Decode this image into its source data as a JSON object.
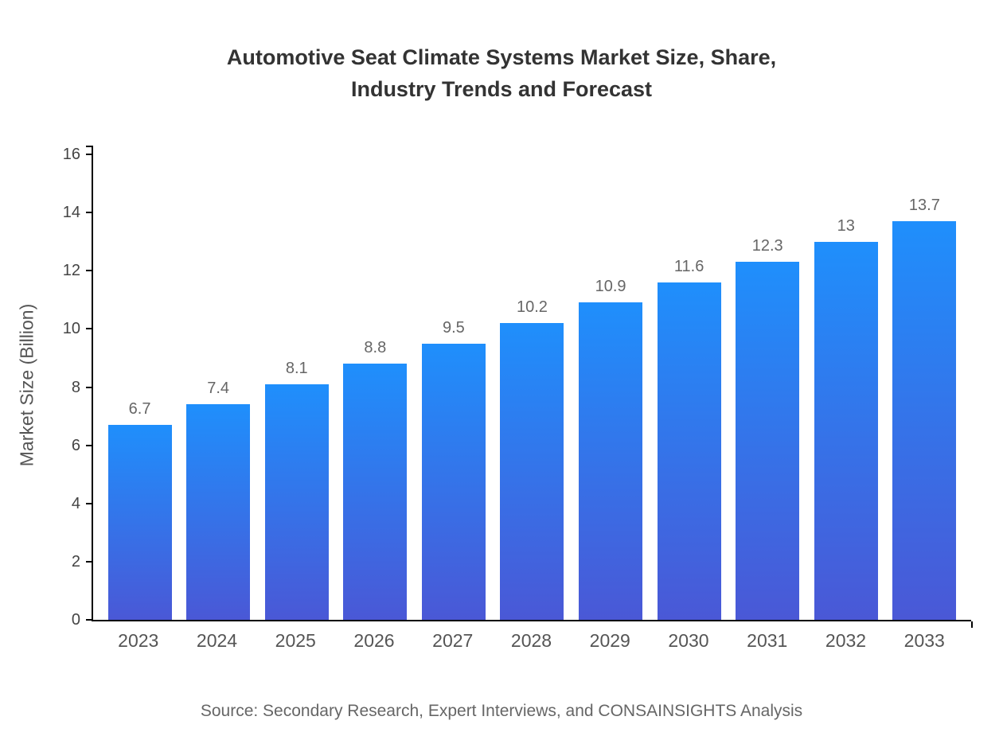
{
  "title_lines": [
    "Automotive Seat Climate Systems Market Size, Share,",
    "Industry Trends and Forecast"
  ],
  "source_note": "Source: Secondary Research, Expert Interviews, and CONSAINSIGHTS Analysis",
  "chart_data": {
    "type": "bar",
    "title": "Automotive Seat Climate Systems Market Size, Share, Industry Trends and Forecast",
    "categories": [
      "2023",
      "2024",
      "2025",
      "2026",
      "2027",
      "2028",
      "2029",
      "2030",
      "2031",
      "2032",
      "2033"
    ],
    "values": [
      6.7,
      7.4,
      8.1,
      8.8,
      9.5,
      10.2,
      10.9,
      11.6,
      12.3,
      13,
      13.7
    ],
    "value_labels": [
      "6.7",
      "7.4",
      "8.1",
      "8.8",
      "9.5",
      "10.2",
      "10.9",
      "11.6",
      "12.3",
      "13",
      "13.7"
    ],
    "xlabel": "",
    "ylabel": "Market Size (Billion)",
    "ylim": [
      0,
      16
    ],
    "ytick_step": 2,
    "grid": false,
    "legend": "none",
    "colors": {
      "bar_gradient_top": "#1f8ffc",
      "bar_gradient_bottom": "#4a58d6",
      "axis": "#000000",
      "title_text": "#333333",
      "tick_text": "#444444",
      "label_text": "#555555",
      "value_text": "#666666"
    }
  }
}
